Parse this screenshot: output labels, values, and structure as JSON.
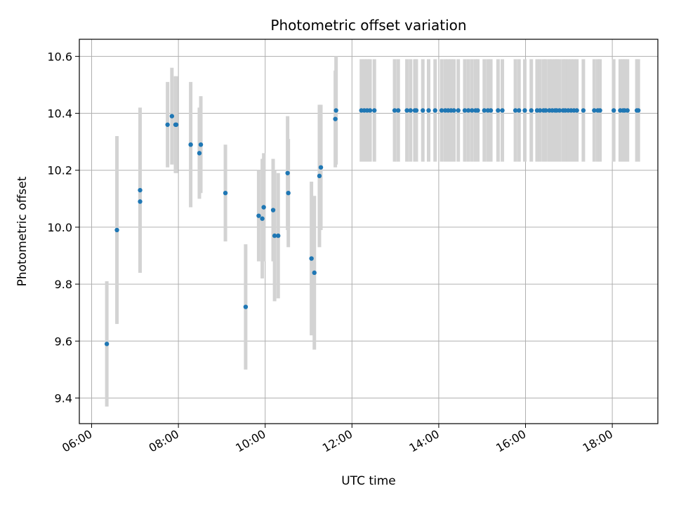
{
  "chart_data": {
    "type": "scatter",
    "title": "Photometric offset variation",
    "xlabel": "UTC time",
    "ylabel": "Photometric offset",
    "x_ticks": [
      "06:00",
      "08:00",
      "10:00",
      "12:00",
      "14:00",
      "16:00",
      "18:00"
    ],
    "y_ticks": [
      "9.4",
      "9.6",
      "9.8",
      "10.0",
      "10.2",
      "10.4",
      "10.6"
    ],
    "xlim": [
      "05:43",
      "19:03"
    ],
    "ylim": [
      9.31,
      10.66
    ],
    "grid": true,
    "legend": "none",
    "series": [
      {
        "marker_color": "#1f77b4",
        "errorbar_color": "#d3d3d3",
        "x": [
          "06:21",
          "06:35",
          "07:07",
          "07:07",
          "07:45",
          "07:51",
          "07:56",
          "07:57",
          "08:17",
          "08:29",
          "08:31",
          "09:05",
          "09:33",
          "09:51",
          "09:56",
          "09:58",
          "10:11",
          "10:13",
          "10:18",
          "10:31",
          "10:32",
          "11:04",
          "11:08",
          "11:15",
          "11:17",
          "11:37",
          "11:38",
          "12:13",
          "12:17",
          "12:21",
          "12:25",
          "12:31",
          "12:59",
          "13:04",
          "13:16",
          "13:21",
          "13:27",
          "13:29",
          "13:38",
          "13:46",
          "13:55",
          "14:04",
          "14:09",
          "14:13",
          "14:17",
          "14:21",
          "14:27",
          "14:36",
          "14:41",
          "14:46",
          "14:51",
          "14:54",
          "15:03",
          "15:08",
          "15:12",
          "15:22",
          "15:28",
          "15:46",
          "15:51",
          "15:59",
          "16:08",
          "16:16",
          "16:20",
          "16:25",
          "16:28",
          "16:33",
          "16:37",
          "16:41",
          "16:43",
          "16:47",
          "16:52",
          "16:55",
          "16:59",
          "17:03",
          "17:07",
          "17:11",
          "17:20",
          "17:35",
          "17:40",
          "17:43",
          "18:02",
          "18:11",
          "18:15",
          "18:17",
          "18:21",
          "18:34",
          "18:36"
        ],
        "y": [
          9.59,
          9.99,
          10.09,
          10.13,
          10.36,
          10.39,
          10.36,
          10.36,
          10.29,
          10.26,
          10.29,
          10.12,
          9.72,
          10.04,
          10.03,
          10.07,
          10.06,
          9.97,
          9.97,
          10.19,
          10.12,
          9.89,
          9.84,
          10.18,
          10.21,
          10.38,
          10.41,
          10.41,
          10.41,
          10.41,
          10.41,
          10.41,
          10.41,
          10.41,
          10.41,
          10.41,
          10.41,
          10.41,
          10.41,
          10.41,
          10.41,
          10.41,
          10.41,
          10.41,
          10.41,
          10.41,
          10.41,
          10.41,
          10.41,
          10.41,
          10.41,
          10.41,
          10.41,
          10.41,
          10.41,
          10.41,
          10.41,
          10.41,
          10.41,
          10.41,
          10.41,
          10.41,
          10.41,
          10.41,
          10.41,
          10.41,
          10.41,
          10.41,
          10.41,
          10.41,
          10.41,
          10.41,
          10.41,
          10.41,
          10.41,
          10.41,
          10.41,
          10.41,
          10.41,
          10.41,
          10.41,
          10.41,
          10.41,
          10.41,
          10.41,
          10.41,
          10.41
        ],
        "y_err": [
          0.22,
          0.33,
          0.25,
          0.29,
          0.15,
          0.17,
          0.17,
          0.17,
          0.22,
          0.16,
          0.17,
          0.17,
          0.22,
          0.16,
          0.21,
          0.19,
          0.18,
          0.23,
          0.22,
          0.2,
          0.19,
          0.27,
          0.27,
          0.25,
          0.22,
          0.17,
          0.19,
          0.18,
          0.18,
          0.18,
          0.18,
          0.18,
          0.18,
          0.18,
          0.18,
          0.18,
          0.18,
          0.18,
          0.18,
          0.18,
          0.18,
          0.18,
          0.18,
          0.18,
          0.18,
          0.18,
          0.18,
          0.18,
          0.18,
          0.18,
          0.18,
          0.18,
          0.18,
          0.18,
          0.18,
          0.18,
          0.18,
          0.18,
          0.18,
          0.18,
          0.18,
          0.18,
          0.18,
          0.18,
          0.18,
          0.18,
          0.18,
          0.18,
          0.18,
          0.18,
          0.18,
          0.18,
          0.18,
          0.18,
          0.18,
          0.18,
          0.18,
          0.18,
          0.18,
          0.18,
          0.18,
          0.18,
          0.18,
          0.18,
          0.18,
          0.18,
          0.18
        ]
      }
    ]
  }
}
